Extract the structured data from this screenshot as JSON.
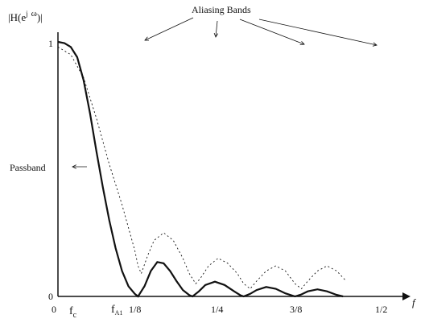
{
  "figure": {
    "title_annotation": "Aliasing Bands",
    "y_axis_label_main": "|H(e",
    "y_axis_label_sup": "j",
    "y_axis_label_omega": "ω",
    "y_axis_label_end": ")|",
    "passband_label": "Passband",
    "x_axis_label": "f",
    "y_ticks": {
      "top": "1",
      "bottom": "0"
    },
    "x_ticks": {
      "origin": "0",
      "fc_base": "f",
      "fc_sub": "c",
      "fa1_base": "f",
      "fa1_sub": "A1",
      "eighth": "1/8",
      "quarter": "1/4",
      "three_eighths": "3/8",
      "half": "1/2"
    }
  },
  "chart_data": {
    "type": "line",
    "xlabel": "f",
    "ylabel": "|H(e^jω)|",
    "xlim": [
      0,
      0.5
    ],
    "ylim": [
      0,
      1
    ],
    "series": [
      {
        "style": "solid",
        "points": [
          [
            0,
            1
          ],
          [
            0.01,
            0.995
          ],
          [
            0.02,
            0.98
          ],
          [
            0.03,
            0.94
          ],
          [
            0.04,
            0.85
          ],
          [
            0.05,
            0.72
          ],
          [
            0.06,
            0.57
          ],
          [
            0.07,
            0.43
          ],
          [
            0.08,
            0.3
          ],
          [
            0.09,
            0.19
          ],
          [
            0.1,
            0.1
          ],
          [
            0.11,
            0.04
          ],
          [
            0.12,
            0.01
          ],
          [
            0.125,
            0
          ],
          [
            0.135,
            0.04
          ],
          [
            0.145,
            0.1
          ],
          [
            0.155,
            0.135
          ],
          [
            0.165,
            0.13
          ],
          [
            0.175,
            0.1
          ],
          [
            0.185,
            0.06
          ],
          [
            0.195,
            0.025
          ],
          [
            0.205,
            0.005
          ],
          [
            0.21,
            0
          ],
          [
            0.22,
            0.02
          ],
          [
            0.23,
            0.045
          ],
          [
            0.245,
            0.058
          ],
          [
            0.26,
            0.045
          ],
          [
            0.275,
            0.02
          ],
          [
            0.285,
            0.004
          ],
          [
            0.29,
            0
          ],
          [
            0.3,
            0.01
          ],
          [
            0.31,
            0.025
          ],
          [
            0.325,
            0.037
          ],
          [
            0.34,
            0.03
          ],
          [
            0.355,
            0.012
          ],
          [
            0.37,
            0
          ],
          [
            0.38,
            0.008
          ],
          [
            0.39,
            0.02
          ],
          [
            0.405,
            0.028
          ],
          [
            0.42,
            0.02
          ],
          [
            0.435,
            0.006
          ],
          [
            0.445,
            0
          ]
        ]
      },
      {
        "style": "dashed",
        "points": [
          [
            0,
            0.98
          ],
          [
            0.02,
            0.95
          ],
          [
            0.04,
            0.86
          ],
          [
            0.06,
            0.7
          ],
          [
            0.08,
            0.52
          ],
          [
            0.1,
            0.36
          ],
          [
            0.11,
            0.27
          ],
          [
            0.12,
            0.18
          ],
          [
            0.125,
            0.12
          ],
          [
            0.13,
            0.09
          ],
          [
            0.14,
            0.16
          ],
          [
            0.15,
            0.22
          ],
          [
            0.165,
            0.25
          ],
          [
            0.18,
            0.22
          ],
          [
            0.195,
            0.15
          ],
          [
            0.205,
            0.09
          ],
          [
            0.215,
            0.05
          ],
          [
            0.222,
            0.07
          ],
          [
            0.235,
            0.12
          ],
          [
            0.25,
            0.15
          ],
          [
            0.265,
            0.13
          ],
          [
            0.28,
            0.09
          ],
          [
            0.29,
            0.05
          ],
          [
            0.3,
            0.03
          ],
          [
            0.31,
            0.06
          ],
          [
            0.325,
            0.1
          ],
          [
            0.34,
            0.12
          ],
          [
            0.355,
            0.1
          ],
          [
            0.37,
            0.05
          ],
          [
            0.38,
            0.03
          ],
          [
            0.39,
            0.06
          ],
          [
            0.405,
            0.1
          ],
          [
            0.42,
            0.12
          ],
          [
            0.435,
            0.1
          ],
          [
            0.45,
            0.06
          ]
        ]
      }
    ],
    "annotations": [
      "Aliasing Bands",
      "Passband"
    ]
  }
}
